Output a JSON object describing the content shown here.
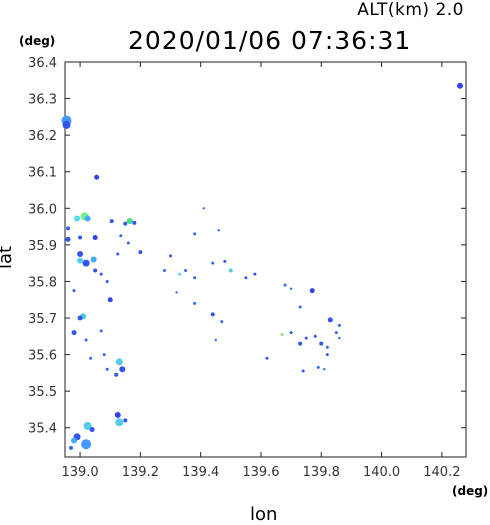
{
  "header": {
    "alt_label": "ALT(km)  2.0",
    "timestamp": "2020/01/06 07:36:31"
  },
  "chart_data": {
    "type": "scatter",
    "title": "2020/01/06 07:36:31",
    "xlabel": "lon",
    "ylabel": "lat",
    "x_unit": "(deg)",
    "y_unit": "(deg)",
    "xlim": [
      138.95,
      140.28
    ],
    "ylim": [
      35.32,
      36.4
    ],
    "x_ticks": [
      "139.0",
      "139.2",
      "139.4",
      "139.6",
      "139.8",
      "140.0",
      "140.2"
    ],
    "x_tick_values": [
      139.0,
      139.2,
      139.4,
      139.6,
      139.8,
      140.0,
      140.2
    ],
    "y_ticks": [
      "36.4",
      "36.3",
      "36.2",
      "36.1",
      "36.0",
      "35.9",
      "35.8",
      "35.7",
      "35.6",
      "35.5",
      "35.4"
    ],
    "y_tick_values": [
      36.4,
      36.3,
      36.2,
      36.1,
      36.0,
      35.9,
      35.8,
      35.7,
      35.6,
      35.5,
      35.4
    ],
    "grid": false,
    "points": [
      {
        "x": 140.26,
        "y": 36.335,
        "color": "#3344ee",
        "s": 3
      },
      {
        "x": 138.955,
        "y": 36.24,
        "color": "#4499ff",
        "s": 5
      },
      {
        "x": 138.955,
        "y": 36.228,
        "color": "#3355ee",
        "s": 4
      },
      {
        "x": 139.055,
        "y": 36.085,
        "color": "#3344ee",
        "s": 2.5
      },
      {
        "x": 138.99,
        "y": 35.972,
        "color": "#55ddee",
        "s": 3
      },
      {
        "x": 139.015,
        "y": 35.978,
        "color": "#77ee88",
        "s": 4
      },
      {
        "x": 139.025,
        "y": 35.972,
        "color": "#44aaff",
        "s": 3
      },
      {
        "x": 138.96,
        "y": 35.945,
        "color": "#3366ee",
        "s": 2
      },
      {
        "x": 138.96,
        "y": 35.915,
        "color": "#3355ee",
        "s": 2.5
      },
      {
        "x": 139.0,
        "y": 35.92,
        "color": "#3355ee",
        "s": 2
      },
      {
        "x": 139.05,
        "y": 35.92,
        "color": "#3344ee",
        "s": 2.5
      },
      {
        "x": 139.105,
        "y": 35.965,
        "color": "#3355ee",
        "s": 2
      },
      {
        "x": 139.15,
        "y": 35.958,
        "color": "#3355ee",
        "s": 2
      },
      {
        "x": 139.165,
        "y": 35.965,
        "color": "#44dd88",
        "s": 3
      },
      {
        "x": 139.18,
        "y": 35.96,
        "color": "#3355ee",
        "s": 2
      },
      {
        "x": 139.135,
        "y": 35.925,
        "color": "#3366ee",
        "s": 1.5
      },
      {
        "x": 139.16,
        "y": 35.905,
        "color": "#3366ee",
        "s": 1.5
      },
      {
        "x": 139.2,
        "y": 35.88,
        "color": "#3355ee",
        "s": 2
      },
      {
        "x": 139.125,
        "y": 35.875,
        "color": "#3355ee",
        "s": 1.5
      },
      {
        "x": 139.0,
        "y": 35.875,
        "color": "#3355ee",
        "s": 3
      },
      {
        "x": 139.0,
        "y": 35.857,
        "color": "#55ccee",
        "s": 3
      },
      {
        "x": 139.02,
        "y": 35.85,
        "color": "#3355ee",
        "s": 3.5
      },
      {
        "x": 139.045,
        "y": 35.86,
        "color": "#44aaff",
        "s": 3
      },
      {
        "x": 139.05,
        "y": 35.83,
        "color": "#3355ee",
        "s": 2
      },
      {
        "x": 139.07,
        "y": 35.82,
        "color": "#3355ee",
        "s": 1.5
      },
      {
        "x": 139.09,
        "y": 35.8,
        "color": "#3355ee",
        "s": 1.5
      },
      {
        "x": 139.1,
        "y": 35.75,
        "color": "#3344ee",
        "s": 2.5
      },
      {
        "x": 138.98,
        "y": 35.775,
        "color": "#3355ee",
        "s": 1.5
      },
      {
        "x": 139.01,
        "y": 35.705,
        "color": "#44ccdd",
        "s": 3
      },
      {
        "x": 139.0,
        "y": 35.7,
        "color": "#3355ee",
        "s": 2.5
      },
      {
        "x": 138.98,
        "y": 35.66,
        "color": "#3355ee",
        "s": 2.5
      },
      {
        "x": 139.02,
        "y": 35.64,
        "color": "#3366ee",
        "s": 1.5
      },
      {
        "x": 139.07,
        "y": 35.665,
        "color": "#3366ee",
        "s": 1.5
      },
      {
        "x": 139.08,
        "y": 35.6,
        "color": "#3366ee",
        "s": 1.5
      },
      {
        "x": 139.035,
        "y": 35.59,
        "color": "#3366ee",
        "s": 1.5
      },
      {
        "x": 139.13,
        "y": 35.58,
        "color": "#55ccee",
        "s": 3.5
      },
      {
        "x": 139.14,
        "y": 35.56,
        "color": "#3355ee",
        "s": 3
      },
      {
        "x": 139.12,
        "y": 35.545,
        "color": "#3355ee",
        "s": 2
      },
      {
        "x": 139.09,
        "y": 35.56,
        "color": "#3366ee",
        "s": 1.5
      },
      {
        "x": 139.125,
        "y": 35.435,
        "color": "#3344ee",
        "s": 3
      },
      {
        "x": 139.13,
        "y": 35.415,
        "color": "#55ccee",
        "s": 4
      },
      {
        "x": 139.15,
        "y": 35.42,
        "color": "#3355ee",
        "s": 2
      },
      {
        "x": 139.025,
        "y": 35.405,
        "color": "#55ccee",
        "s": 4
      },
      {
        "x": 139.04,
        "y": 35.395,
        "color": "#3355ee",
        "s": 2.5
      },
      {
        "x": 138.99,
        "y": 35.375,
        "color": "#3355ee",
        "s": 3.5
      },
      {
        "x": 138.98,
        "y": 35.365,
        "color": "#44aaff",
        "s": 3
      },
      {
        "x": 139.02,
        "y": 35.355,
        "color": "#4499ff",
        "s": 5
      },
      {
        "x": 138.97,
        "y": 35.345,
        "color": "#3366ee",
        "s": 2
      },
      {
        "x": 139.3,
        "y": 35.87,
        "color": "#3355ee",
        "s": 1.5
      },
      {
        "x": 139.28,
        "y": 35.83,
        "color": "#3366ee",
        "s": 1.5
      },
      {
        "x": 139.33,
        "y": 35.82,
        "color": "#55ccee",
        "s": 1.5
      },
      {
        "x": 139.35,
        "y": 35.83,
        "color": "#3366ee",
        "s": 1.5
      },
      {
        "x": 139.38,
        "y": 35.81,
        "color": "#3366ee",
        "s": 1.5
      },
      {
        "x": 139.44,
        "y": 35.85,
        "color": "#3366ee",
        "s": 1.5
      },
      {
        "x": 139.48,
        "y": 35.855,
        "color": "#3355ee",
        "s": 1.5
      },
      {
        "x": 139.5,
        "y": 35.83,
        "color": "#55ccee",
        "s": 2
      },
      {
        "x": 139.55,
        "y": 35.81,
        "color": "#3355ee",
        "s": 1.5
      },
      {
        "x": 139.58,
        "y": 35.82,
        "color": "#3355ee",
        "s": 1.5
      },
      {
        "x": 139.38,
        "y": 35.93,
        "color": "#3366ee",
        "s": 1.5
      },
      {
        "x": 139.41,
        "y": 36.0,
        "color": "#3366ee",
        "s": 1.2
      },
      {
        "x": 139.46,
        "y": 35.94,
        "color": "#3366ee",
        "s": 1.2
      },
      {
        "x": 139.44,
        "y": 35.71,
        "color": "#3355ee",
        "s": 2
      },
      {
        "x": 139.38,
        "y": 35.74,
        "color": "#3366ee",
        "s": 1.5
      },
      {
        "x": 139.47,
        "y": 35.69,
        "color": "#3366ee",
        "s": 1.5
      },
      {
        "x": 139.45,
        "y": 35.64,
        "color": "#3366ee",
        "s": 1.2
      },
      {
        "x": 139.68,
        "y": 35.79,
        "color": "#3366ee",
        "s": 1.5
      },
      {
        "x": 139.7,
        "y": 35.78,
        "color": "#3366ee",
        "s": 1.2
      },
      {
        "x": 139.77,
        "y": 35.775,
        "color": "#3344ee",
        "s": 2.5
      },
      {
        "x": 139.73,
        "y": 35.73,
        "color": "#3366ee",
        "s": 1.5
      },
      {
        "x": 139.67,
        "y": 35.655,
        "color": "#88dd77",
        "s": 1.5
      },
      {
        "x": 139.7,
        "y": 35.66,
        "color": "#3355ee",
        "s": 1.5
      },
      {
        "x": 139.73,
        "y": 35.63,
        "color": "#3355ee",
        "s": 2
      },
      {
        "x": 139.75,
        "y": 35.645,
        "color": "#3355ee",
        "s": 1.5
      },
      {
        "x": 139.78,
        "y": 35.65,
        "color": "#3355ee",
        "s": 1.5
      },
      {
        "x": 139.8,
        "y": 35.63,
        "color": "#3355ee",
        "s": 2
      },
      {
        "x": 139.82,
        "y": 35.62,
        "color": "#3366ee",
        "s": 1.5
      },
      {
        "x": 139.83,
        "y": 35.695,
        "color": "#3355ee",
        "s": 2.5
      },
      {
        "x": 139.86,
        "y": 35.68,
        "color": "#3366ee",
        "s": 1.5
      },
      {
        "x": 139.85,
        "y": 35.66,
        "color": "#3366ee",
        "s": 1.5
      },
      {
        "x": 139.86,
        "y": 35.645,
        "color": "#3366ee",
        "s": 1.2
      },
      {
        "x": 139.82,
        "y": 35.6,
        "color": "#3355ee",
        "s": 1.5
      },
      {
        "x": 139.74,
        "y": 35.555,
        "color": "#3355ee",
        "s": 1.5
      },
      {
        "x": 139.79,
        "y": 35.565,
        "color": "#3366ee",
        "s": 1.5
      },
      {
        "x": 139.81,
        "y": 35.56,
        "color": "#3366ee",
        "s": 1.2
      },
      {
        "x": 139.62,
        "y": 35.59,
        "color": "#3355ee",
        "s": 1.5
      },
      {
        "x": 139.32,
        "y": 35.77,
        "color": "#3366ee",
        "s": 1.2
      }
    ]
  }
}
